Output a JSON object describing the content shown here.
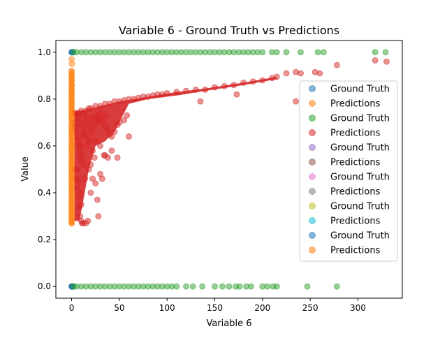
{
  "chart_data": {
    "type": "scatter",
    "title": "Variable 6 - Ground Truth vs Predictions",
    "xlabel": "Variable 6",
    "ylabel": "Value",
    "xlim": [
      -16.5,
      346.5
    ],
    "ylim": [
      -0.05,
      1.05
    ],
    "xticks": [
      0,
      50,
      100,
      150,
      200,
      250,
      300
    ],
    "yticks": [
      0.0,
      0.2,
      0.4,
      0.6,
      0.8,
      1.0
    ],
    "xtick_labels": [
      "0",
      "50",
      "100",
      "150",
      "200",
      "250",
      "300"
    ],
    "ytick_labels": [
      "0.0",
      "0.2",
      "0.4",
      "0.6",
      "0.8",
      "1.0"
    ],
    "grid": false,
    "legend_position": "right",
    "series": [
      {
        "name": "Ground Truth",
        "color": "#1f77b4",
        "marker_alpha": 0.5,
        "points": [
          [
            0,
            1.0
          ],
          [
            0.2,
            1.0
          ],
          [
            0.4,
            1.0
          ],
          [
            0.6,
            1.0
          ],
          [
            0.8,
            1.0
          ],
          [
            1,
            1.0
          ],
          [
            0,
            0.0
          ],
          [
            0.2,
            0.0
          ],
          [
            0.4,
            0.0
          ],
          [
            0.6,
            0.0
          ],
          [
            0.8,
            0.0
          ],
          [
            1,
            0.0
          ]
        ]
      },
      {
        "name": "Predictions",
        "color": "#ff7f0e",
        "marker_alpha": 0.5,
        "points": [
          [
            0,
            0.97
          ],
          [
            0.3,
            0.95
          ],
          [
            0,
            0.92
          ],
          [
            0.2,
            0.9
          ],
          [
            0,
            0.88
          ],
          [
            0.4,
            0.86
          ],
          [
            0,
            0.84
          ],
          [
            0.2,
            0.82
          ],
          [
            0,
            0.8
          ],
          [
            0.3,
            0.78
          ],
          [
            0,
            0.76
          ],
          [
            0.2,
            0.74
          ],
          [
            0,
            0.72
          ],
          [
            0.4,
            0.7
          ],
          [
            0,
            0.68
          ],
          [
            0.2,
            0.66
          ],
          [
            0,
            0.64
          ],
          [
            0.3,
            0.62
          ],
          [
            0,
            0.6
          ],
          [
            0.2,
            0.58
          ],
          [
            0,
            0.56
          ],
          [
            0.4,
            0.54
          ],
          [
            0,
            0.52
          ],
          [
            0.2,
            0.5
          ],
          [
            0,
            0.48
          ],
          [
            0.3,
            0.46
          ],
          [
            0,
            0.44
          ],
          [
            0.2,
            0.42
          ],
          [
            0,
            0.4
          ],
          [
            0.4,
            0.38
          ],
          [
            0,
            0.36
          ],
          [
            0.2,
            0.34
          ],
          [
            0,
            0.32
          ],
          [
            0.3,
            0.3
          ],
          [
            0,
            0.28
          ],
          [
            0.2,
            0.27
          ]
        ]
      },
      {
        "name": "Ground Truth",
        "color": "#2ca02c",
        "marker_alpha": 0.5,
        "points": [
          [
            2,
            1.0
          ],
          [
            5,
            1.0
          ],
          [
            10,
            1.0
          ],
          [
            15,
            1.0
          ],
          [
            20,
            1.0
          ],
          [
            25,
            1.0
          ],
          [
            30,
            1.0
          ],
          [
            35,
            1.0
          ],
          [
            40,
            1.0
          ],
          [
            45,
            1.0
          ],
          [
            50,
            1.0
          ],
          [
            55,
            1.0
          ],
          [
            60,
            1.0
          ],
          [
            65,
            1.0
          ],
          [
            70,
            1.0
          ],
          [
            75,
            1.0
          ],
          [
            80,
            1.0
          ],
          [
            85,
            1.0
          ],
          [
            90,
            1.0
          ],
          [
            95,
            1.0
          ],
          [
            100,
            1.0
          ],
          [
            105,
            1.0
          ],
          [
            110,
            1.0
          ],
          [
            115,
            1.0
          ],
          [
            120,
            1.0
          ],
          [
            125,
            1.0
          ],
          [
            130,
            1.0
          ],
          [
            135,
            1.0
          ],
          [
            140,
            1.0
          ],
          [
            145,
            1.0
          ],
          [
            150,
            1.0
          ],
          [
            155,
            1.0
          ],
          [
            160,
            1.0
          ],
          [
            165,
            1.0
          ],
          [
            170,
            1.0
          ],
          [
            175,
            1.0
          ],
          [
            180,
            1.0
          ],
          [
            185,
            1.0
          ],
          [
            190,
            1.0
          ],
          [
            195,
            1.0
          ],
          [
            200,
            1.0
          ],
          [
            210,
            1.0
          ],
          [
            215,
            1.0
          ],
          [
            225,
            1.0
          ],
          [
            240,
            1.0
          ],
          [
            258,
            1.0
          ],
          [
            264,
            1.0
          ],
          [
            318,
            1.0
          ],
          [
            329,
            1.0
          ],
          [
            2,
            0.0
          ],
          [
            5,
            0.0
          ],
          [
            10,
            0.0
          ],
          [
            15,
            0.0
          ],
          [
            20,
            0.0
          ],
          [
            25,
            0.0
          ],
          [
            30,
            0.0
          ],
          [
            35,
            0.0
          ],
          [
            40,
            0.0
          ],
          [
            45,
            0.0
          ],
          [
            50,
            0.0
          ],
          [
            55,
            0.0
          ],
          [
            60,
            0.0
          ],
          [
            65,
            0.0
          ],
          [
            70,
            0.0
          ],
          [
            75,
            0.0
          ],
          [
            80,
            0.0
          ],
          [
            85,
            0.0
          ],
          [
            90,
            0.0
          ],
          [
            95,
            0.0
          ],
          [
            100,
            0.0
          ],
          [
            105,
            0.0
          ],
          [
            110,
            0.0
          ],
          [
            120,
            0.0
          ],
          [
            127,
            0.0
          ],
          [
            137,
            0.0
          ],
          [
            150,
            0.0
          ],
          [
            158,
            0.0
          ],
          [
            165,
            0.0
          ],
          [
            172,
            0.0
          ],
          [
            176,
            0.0
          ],
          [
            183,
            0.0
          ],
          [
            188,
            0.0
          ],
          [
            200,
            0.0
          ],
          [
            205,
            0.0
          ],
          [
            211,
            0.0
          ],
          [
            215,
            0.0
          ],
          [
            247,
            0.0
          ],
          [
            278,
            0.0
          ]
        ]
      },
      {
        "name": "Predictions",
        "color": "#d62728",
        "marker_alpha": 0.5,
        "points": [
          [
            3,
            0.74
          ],
          [
            5,
            0.73
          ],
          [
            8,
            0.74
          ],
          [
            10,
            0.75
          ],
          [
            12,
            0.74
          ],
          [
            15,
            0.75
          ],
          [
            18,
            0.76
          ],
          [
            20,
            0.76
          ],
          [
            25,
            0.77
          ],
          [
            30,
            0.77
          ],
          [
            35,
            0.78
          ],
          [
            40,
            0.78
          ],
          [
            45,
            0.79
          ],
          [
            50,
            0.79
          ],
          [
            55,
            0.795
          ],
          [
            60,
            0.8
          ],
          [
            65,
            0.8
          ],
          [
            70,
            0.805
          ],
          [
            75,
            0.81
          ],
          [
            80,
            0.81
          ],
          [
            85,
            0.815
          ],
          [
            90,
            0.82
          ],
          [
            95,
            0.82
          ],
          [
            100,
            0.825
          ],
          [
            110,
            0.83
          ],
          [
            120,
            0.835
          ],
          [
            130,
            0.84
          ],
          [
            140,
            0.84
          ],
          [
            150,
            0.85
          ],
          [
            160,
            0.855
          ],
          [
            170,
            0.86
          ],
          [
            180,
            0.87
          ],
          [
            190,
            0.875
          ],
          [
            200,
            0.88
          ],
          [
            210,
            0.89
          ],
          [
            215,
            0.895
          ],
          [
            225,
            0.91
          ],
          [
            235,
            0.915
          ],
          [
            240,
            0.91
          ],
          [
            255,
            0.915
          ],
          [
            260,
            0.91
          ],
          [
            278,
            0.945
          ],
          [
            318,
            0.965
          ],
          [
            330,
            0.96
          ],
          [
            3,
            0.7
          ],
          [
            4,
            0.68
          ],
          [
            5,
            0.66
          ],
          [
            6,
            0.64
          ],
          [
            7,
            0.62
          ],
          [
            8,
            0.6
          ],
          [
            9,
            0.58
          ],
          [
            10,
            0.56
          ],
          [
            11,
            0.54
          ],
          [
            12,
            0.52
          ],
          [
            14,
            0.7
          ],
          [
            16,
            0.72
          ],
          [
            18,
            0.68
          ],
          [
            20,
            0.7
          ],
          [
            22,
            0.72
          ],
          [
            25,
            0.73
          ],
          [
            28,
            0.72
          ],
          [
            30,
            0.74
          ],
          [
            33,
            0.7
          ],
          [
            35,
            0.68
          ],
          [
            38,
            0.67
          ],
          [
            40,
            0.65
          ],
          [
            42,
            0.64
          ],
          [
            45,
            0.66
          ],
          [
            48,
            0.69
          ],
          [
            50,
            0.7
          ],
          [
            55,
            0.71
          ],
          [
            58,
            0.73
          ],
          [
            60,
            0.64
          ],
          [
            4,
            0.5
          ],
          [
            5,
            0.46
          ],
          [
            6,
            0.42
          ],
          [
            7,
            0.38
          ],
          [
            8,
            0.34
          ],
          [
            9,
            0.3
          ],
          [
            10,
            0.28
          ],
          [
            11,
            0.27
          ],
          [
            12,
            0.27
          ],
          [
            15,
            0.27
          ],
          [
            17,
            0.28
          ],
          [
            20,
            0.4
          ],
          [
            22,
            0.46
          ],
          [
            25,
            0.44
          ],
          [
            27,
            0.37
          ],
          [
            30,
            0.48
          ],
          [
            32,
            0.46
          ],
          [
            35,
            0.56
          ],
          [
            38,
            0.55
          ],
          [
            28,
            0.3
          ],
          [
            48,
            0.55
          ],
          [
            42,
            0.58
          ],
          [
            5,
            0.74
          ],
          [
            7,
            0.72
          ],
          [
            9,
            0.7
          ],
          [
            11,
            0.68
          ],
          [
            13,
            0.66
          ],
          [
            15,
            0.65
          ],
          [
            17,
            0.63
          ],
          [
            19,
            0.62
          ],
          [
            21,
            0.66
          ],
          [
            23,
            0.68
          ],
          [
            26,
            0.7
          ],
          [
            29,
            0.71
          ],
          [
            32,
            0.72
          ],
          [
            36,
            0.73
          ],
          [
            26,
            0.62
          ],
          [
            30,
            0.6
          ],
          [
            34,
            0.56
          ],
          [
            22,
            0.58
          ],
          [
            24,
            0.55
          ],
          [
            18,
            0.5
          ],
          [
            20,
            0.52
          ],
          [
            14,
            0.46
          ],
          [
            16,
            0.6
          ],
          [
            12,
            0.64
          ],
          [
            10,
            0.6
          ],
          [
            8,
            0.55
          ],
          [
            6,
            0.5
          ],
          [
            7,
            0.45
          ],
          [
            9,
            0.4
          ],
          [
            10,
            0.35
          ],
          [
            135,
            0.79
          ],
          [
            173,
            0.82
          ],
          [
            235,
            0.79
          ]
        ]
      }
    ],
    "extra_legend_entries": [
      {
        "name": "Ground Truth",
        "color": "#9467bd"
      },
      {
        "name": "Predictions",
        "color": "#8c564b"
      },
      {
        "name": "Ground Truth",
        "color": "#e377c2"
      },
      {
        "name": "Predictions",
        "color": "#7f7f7f"
      },
      {
        "name": "Ground Truth",
        "color": "#bcbd22"
      },
      {
        "name": "Predictions",
        "color": "#17becf"
      },
      {
        "name": "Ground Truth",
        "color": "#1f77b4"
      },
      {
        "name": "Predictions",
        "color": "#ff7f0e"
      }
    ]
  }
}
